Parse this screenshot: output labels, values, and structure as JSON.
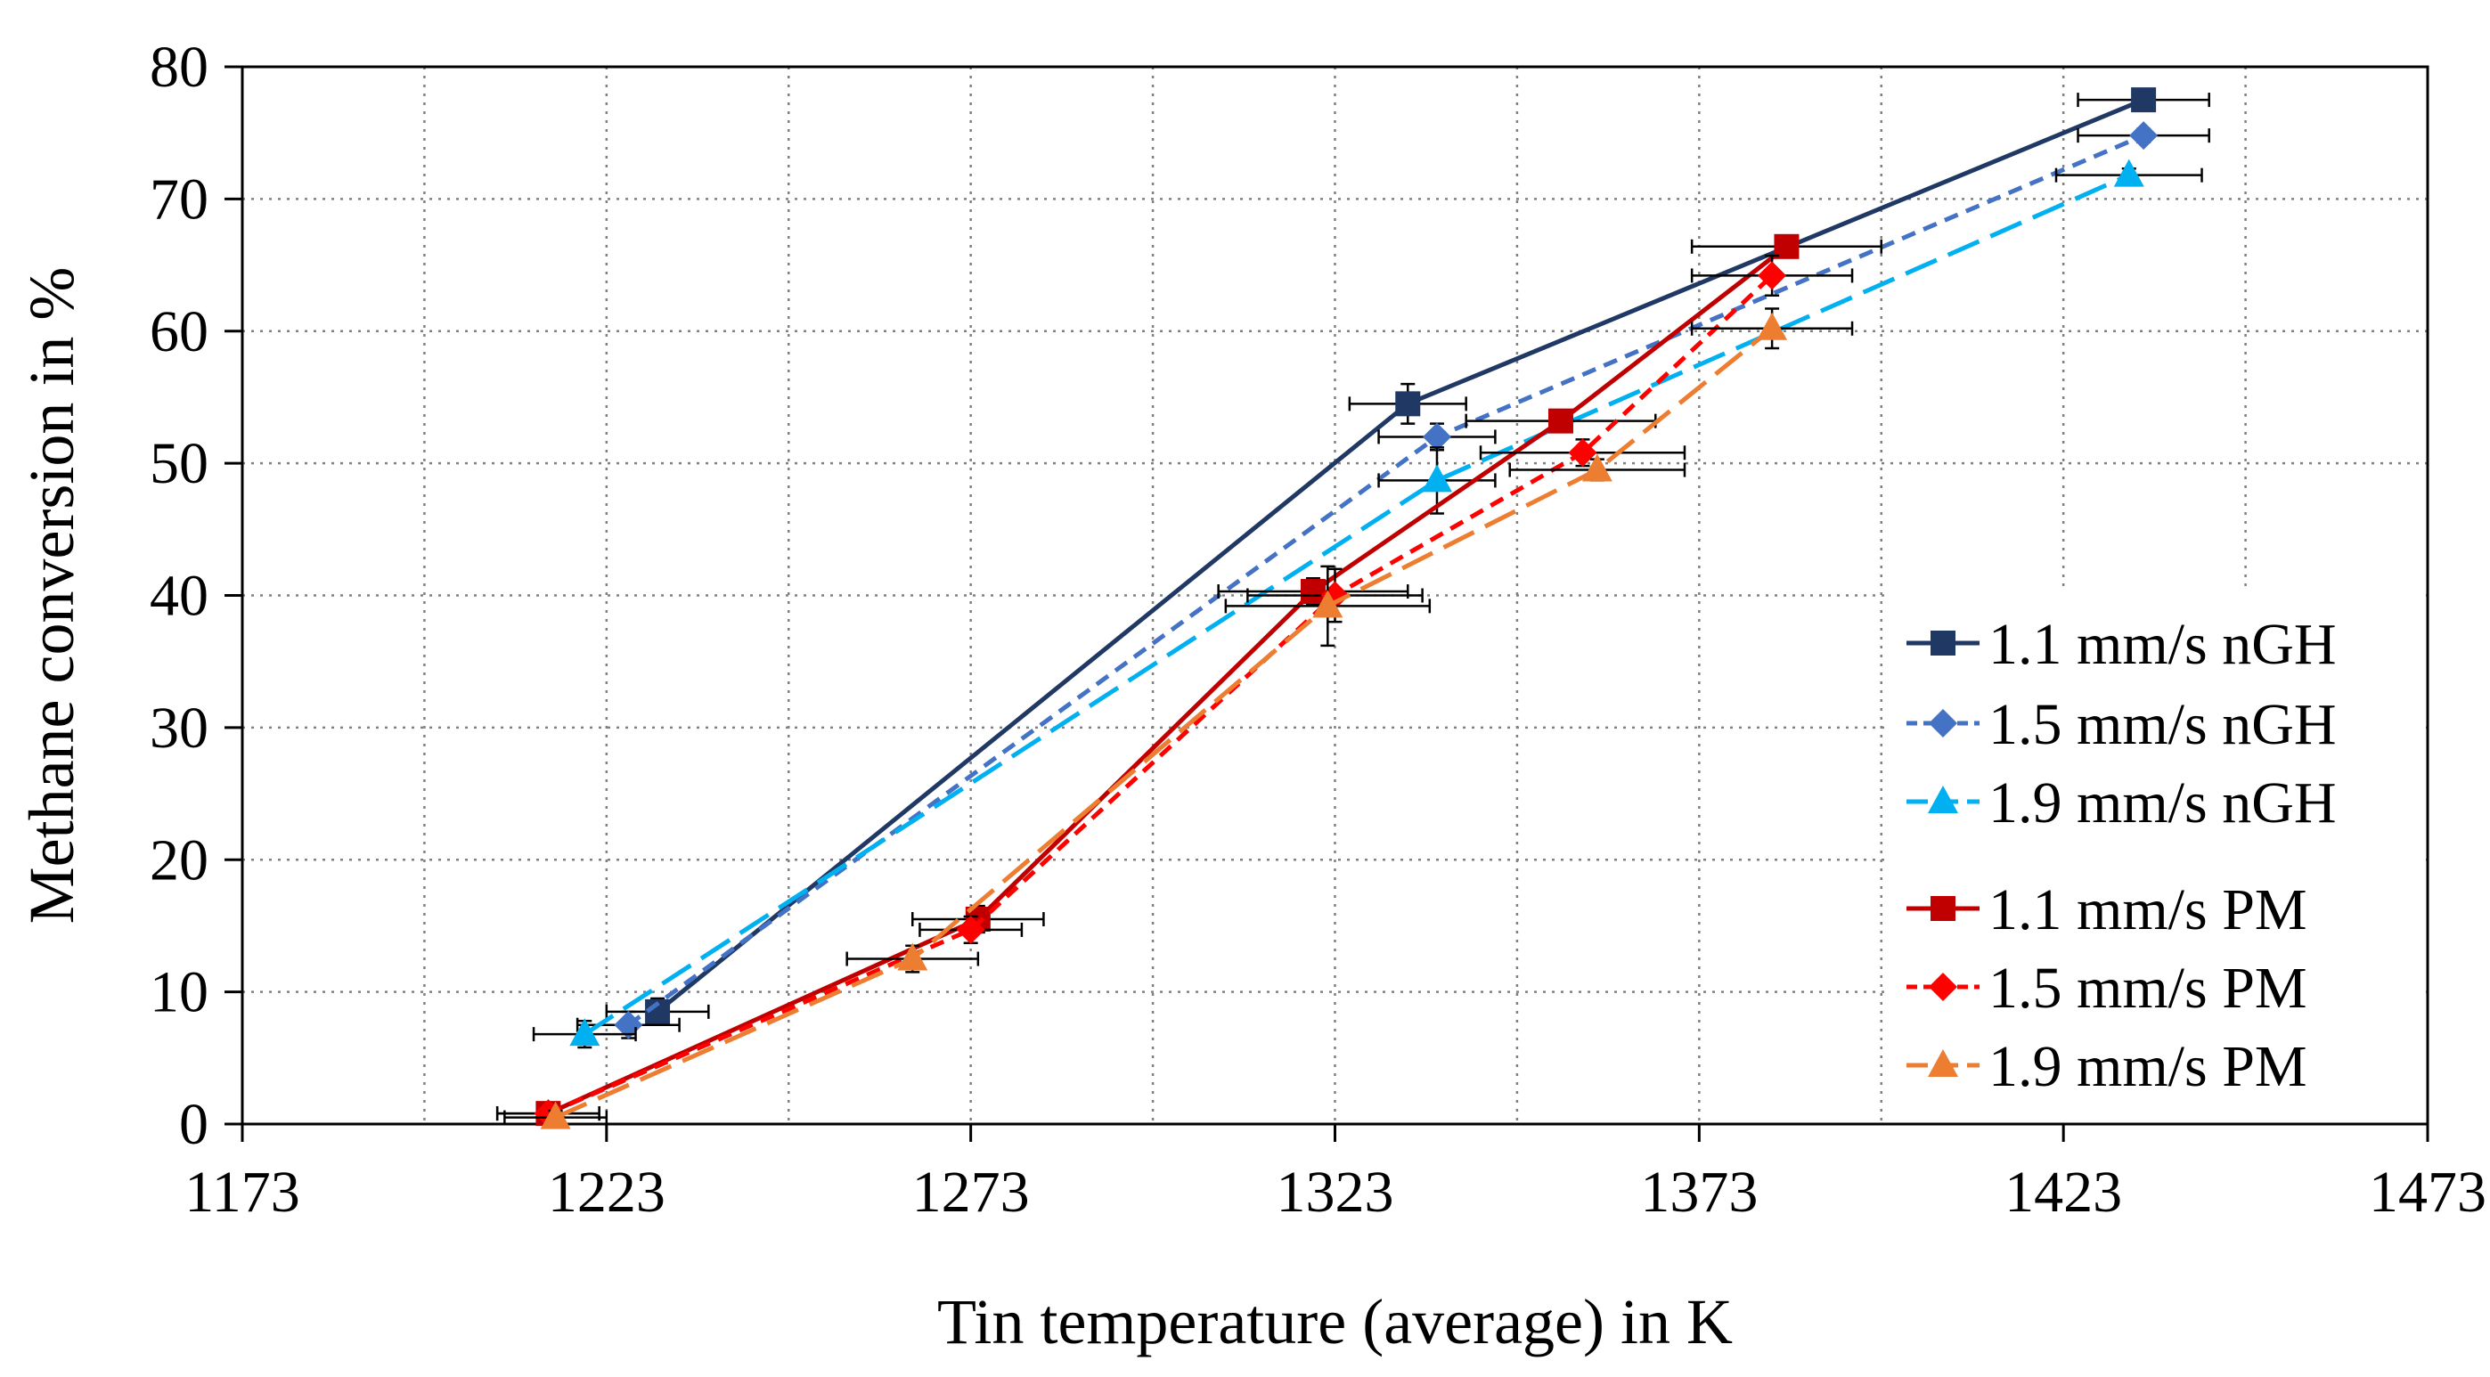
{
  "chart_data": {
    "type": "line",
    "title": "",
    "xlabel": "Tin temperature (average) in K",
    "ylabel": "Methane conversion in %",
    "xlim": [
      1173,
      1473
    ],
    "ylim": [
      0,
      80
    ],
    "xticks": [
      1173,
      1223,
      1273,
      1323,
      1373,
      1423,
      1473
    ],
    "yticks": [
      0,
      10,
      20,
      30,
      40,
      50,
      60,
      70,
      80
    ],
    "grid": true,
    "legend_position": "right",
    "series": [
      {
        "name": "1.1 mm/s nGH",
        "color": "#1f3864",
        "marker": "square",
        "dash": "solid",
        "points": [
          {
            "x": 1230,
            "y": 8.5,
            "xerr": 7,
            "yerr": 1.0
          },
          {
            "x": 1333,
            "y": 54.5,
            "xerr": 8,
            "yerr": 1.5
          },
          {
            "x": 1434,
            "y": 77.5,
            "xerr": 9,
            "yerr": 0.5
          }
        ]
      },
      {
        "name": "1.5 mm/s nGH",
        "color": "#4472c4",
        "marker": "diamond",
        "dash": "short",
        "points": [
          {
            "x": 1226,
            "y": 7.5,
            "xerr": 7,
            "yerr": 1.0
          },
          {
            "x": 1337,
            "y": 52.0,
            "xerr": 8,
            "yerr": 1.0
          },
          {
            "x": 1434,
            "y": 74.8,
            "xerr": 9,
            "yerr": 0.5
          }
        ]
      },
      {
        "name": "1.9 mm/s nGH",
        "color": "#00b0f0",
        "marker": "triangle",
        "dash": "long",
        "points": [
          {
            "x": 1220,
            "y": 6.8,
            "xerr": 7,
            "yerr": 1.0
          },
          {
            "x": 1337,
            "y": 48.7,
            "xerr": 8,
            "yerr": 2.5
          },
          {
            "x": 1432,
            "y": 71.8,
            "xerr": 10,
            "yerr": 0.5
          }
        ]
      },
      {
        "name": "1.1 mm/s PM",
        "color": "#c00000",
        "marker": "square",
        "dash": "solid",
        "points": [
          {
            "x": 1215,
            "y": 0.8,
            "xerr": 7,
            "yerr": 0.5
          },
          {
            "x": 1274,
            "y": 15.5,
            "xerr": 9,
            "yerr": 1.0
          },
          {
            "x": 1320,
            "y": 40.3,
            "xerr": 13,
            "yerr": 1.0
          },
          {
            "x": 1354,
            "y": 53.2,
            "xerr": 13,
            "yerr": 0.8
          },
          {
            "x": 1385,
            "y": 66.4,
            "xerr": 13,
            "yerr": 0.5
          }
        ]
      },
      {
        "name": "1.5 mm/s PM",
        "color": "#ff0000",
        "marker": "diamond",
        "dash": "short",
        "points": [
          {
            "x": 1215,
            "y": 0.8,
            "xerr": 7,
            "yerr": 0.5
          },
          {
            "x": 1273,
            "y": 14.7,
            "xerr": 7,
            "yerr": 1.0
          },
          {
            "x": 1323,
            "y": 40.0,
            "xerr": 12,
            "yerr": 2.0
          },
          {
            "x": 1357,
            "y": 50.8,
            "xerr": 14,
            "yerr": 1.0
          },
          {
            "x": 1383,
            "y": 64.2,
            "xerr": 11,
            "yerr": 1.5
          }
        ]
      },
      {
        "name": "1.9 mm/s PM",
        "color": "#ed7d31",
        "marker": "triangle",
        "dash": "long",
        "points": [
          {
            "x": 1216,
            "y": 0.5,
            "xerr": 7,
            "yerr": 0.5
          },
          {
            "x": 1265,
            "y": 12.5,
            "xerr": 9,
            "yerr": 1.0
          },
          {
            "x": 1322,
            "y": 39.2,
            "xerr": 14,
            "yerr": 3.0
          },
          {
            "x": 1359,
            "y": 49.5,
            "xerr": 12,
            "yerr": 0.8
          },
          {
            "x": 1383,
            "y": 60.2,
            "xerr": 11,
            "yerr": 1.5
          }
        ]
      }
    ]
  }
}
